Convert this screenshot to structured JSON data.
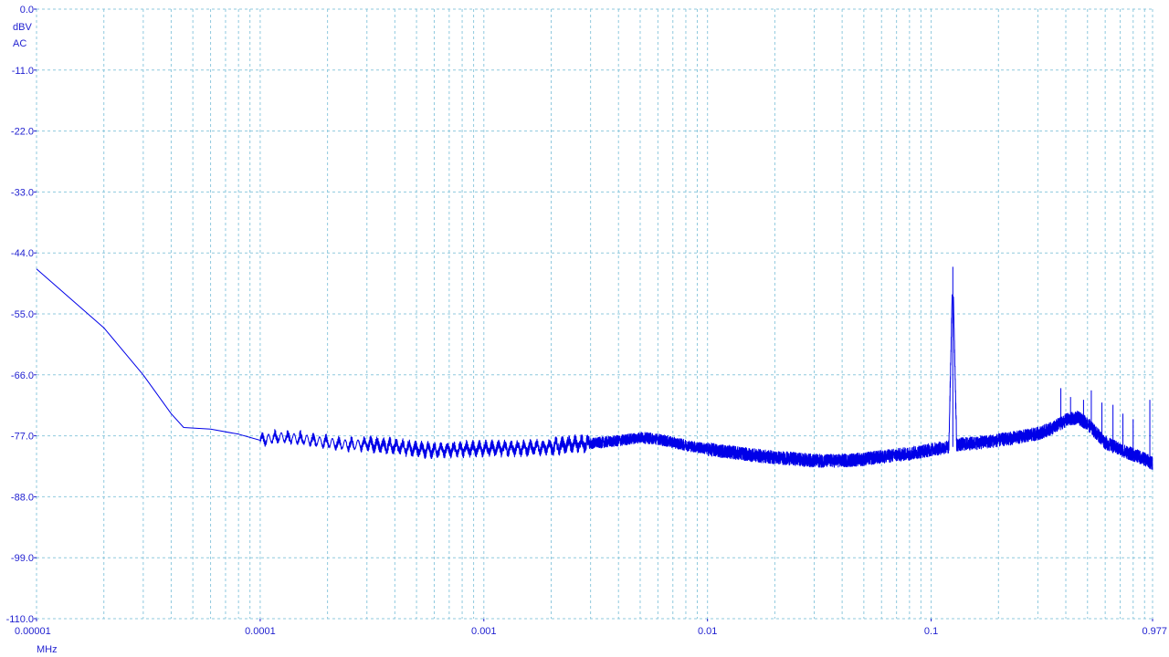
{
  "window": {
    "y_unit_label": "dBV",
    "y_coupling_label": "AC",
    "x_unit_label": "MHz"
  },
  "colors": {
    "trace": "#0000e8",
    "axis_text": "#1f1fd0",
    "grid": "#8fc9de",
    "background": "#ffffff"
  },
  "chart_data": {
    "type": "line",
    "title": "",
    "xlabel": "MHz",
    "ylabel": "dBV",
    "x_scale": "log",
    "xlim": [
      1e-05,
      0.977
    ],
    "ylim": [
      -110.0,
      0.0
    ],
    "grid": true,
    "y_ticks": [
      "0.0",
      "-11.0",
      "-22.0",
      "-33.0",
      "-44.0",
      "-55.0",
      "-66.0",
      "-77.0",
      "-88.0",
      "-99.0",
      "-110.0"
    ],
    "x_ticks": [
      {
        "value": 1e-05,
        "label": "0.00001"
      },
      {
        "value": 0.0001,
        "label": "0.0001"
      },
      {
        "value": 0.001,
        "label": "0.001"
      },
      {
        "value": 0.01,
        "label": "0.01"
      },
      {
        "value": 0.1,
        "label": "0.1"
      },
      {
        "value": 0.977,
        "label": "0.977"
      }
    ],
    "series": [
      {
        "points": [
          [
            1e-05,
            -46.9
          ],
          [
            2e-05,
            -57.5
          ],
          [
            3e-05,
            -66.0
          ],
          [
            4e-05,
            -73.0
          ],
          [
            4.55e-05,
            -75.5
          ],
          [
            6e-05,
            -75.8
          ],
          [
            8e-05,
            -76.7
          ],
          [
            0.0001,
            -77.8
          ],
          [
            0.00012,
            -77.2
          ],
          [
            0.00015,
            -77.5
          ],
          [
            0.0002,
            -78.2
          ],
          [
            0.00025,
            -78.6
          ],
          [
            0.0003,
            -78.5
          ],
          [
            0.0004,
            -78.9
          ],
          [
            0.0005,
            -79.4
          ],
          [
            0.0006,
            -79.6
          ],
          [
            0.0008,
            -79.4
          ],
          [
            0.001,
            -79.3
          ],
          [
            0.0013,
            -79.3
          ],
          [
            0.0016,
            -79.2
          ],
          [
            0.002,
            -79.0
          ],
          [
            0.0025,
            -78.5
          ],
          [
            0.003,
            -78.4
          ],
          [
            0.004,
            -77.9
          ],
          [
            0.005,
            -77.3
          ],
          [
            0.006,
            -77.6
          ],
          [
            0.007,
            -78.2
          ],
          [
            0.008,
            -78.7
          ],
          [
            0.01,
            -79.4
          ],
          [
            0.013,
            -80.0
          ],
          [
            0.016,
            -80.5
          ],
          [
            0.02,
            -80.9
          ],
          [
            0.025,
            -81.2
          ],
          [
            0.03,
            -81.5
          ],
          [
            0.04,
            -81.5
          ],
          [
            0.05,
            -81.2
          ],
          [
            0.06,
            -80.8
          ],
          [
            0.08,
            -80.2
          ],
          [
            0.1,
            -79.5
          ],
          [
            0.12,
            -79.0
          ],
          [
            0.125,
            -46.5
          ],
          [
            0.13,
            -78.6
          ],
          [
            0.16,
            -78.3
          ],
          [
            0.2,
            -77.8
          ],
          [
            0.25,
            -77.2
          ],
          [
            0.3,
            -76.6
          ],
          [
            0.35,
            -75.6
          ],
          [
            0.4,
            -74.2
          ],
          [
            0.45,
            -73.7
          ],
          [
            0.5,
            -74.8
          ],
          [
            0.55,
            -76.6
          ],
          [
            0.6,
            -78.2
          ],
          [
            0.7,
            -79.5
          ],
          [
            0.8,
            -80.4
          ],
          [
            0.9,
            -81.2
          ],
          [
            0.977,
            -82.0
          ]
        ],
        "spurs": [
          [
            0.38,
            -68.4
          ],
          [
            0.42,
            -70.0
          ],
          [
            0.48,
            -70.5
          ],
          [
            0.52,
            -68.8
          ],
          [
            0.58,
            -71.0
          ],
          [
            0.65,
            -71.4
          ],
          [
            0.72,
            -73.0
          ],
          [
            0.8,
            -74.0
          ],
          [
            0.95,
            -70.5
          ]
        ]
      }
    ]
  }
}
